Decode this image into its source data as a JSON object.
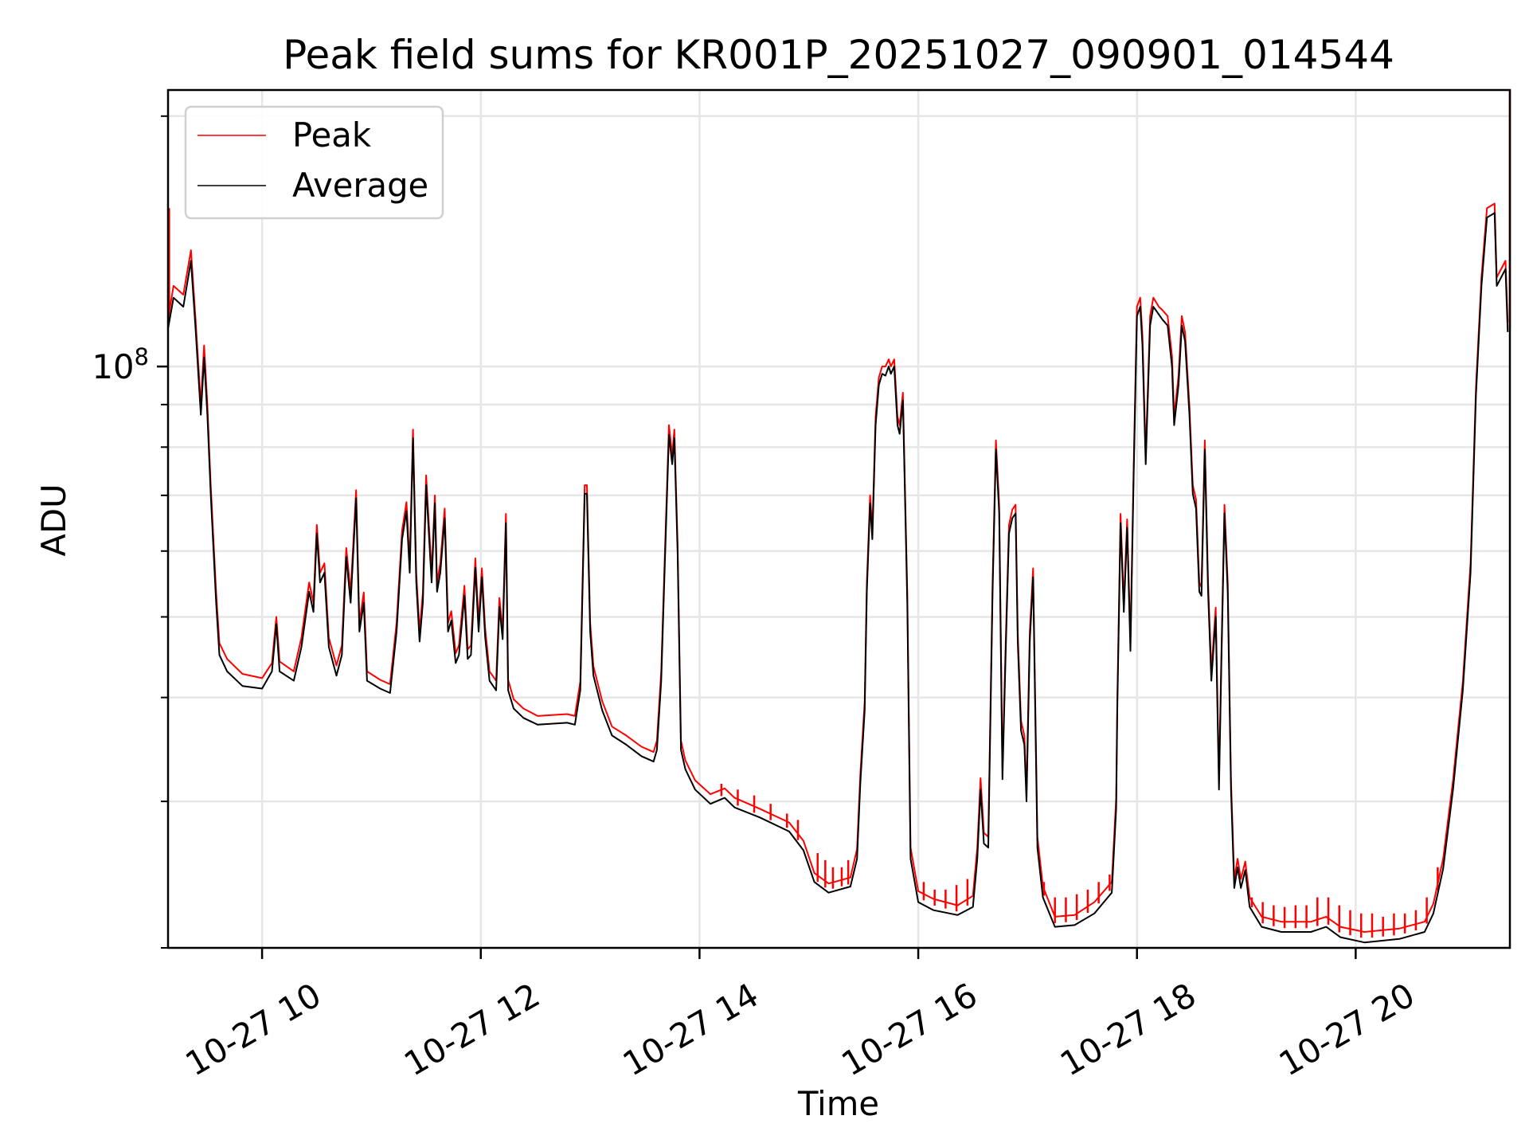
{
  "chart_data": {
    "type": "line",
    "title": "Peak field sums for KR001P_20251027_090901_014544",
    "xlabel": "Time",
    "ylabel": "ADU",
    "yscale": "log",
    "ylim": [
      20000000.0,
      215000000.0
    ],
    "xlim_hours": [
      9.14,
      21.41
    ],
    "x_ticks": [
      {
        "hour": 10,
        "label": "10-27 10"
      },
      {
        "hour": 12,
        "label": "10-27 12"
      },
      {
        "hour": 14,
        "label": "10-27 14"
      },
      {
        "hour": 16,
        "label": "10-27 16"
      },
      {
        "hour": 18,
        "label": "10-27 18"
      },
      {
        "hour": 20,
        "label": "10-27 20"
      }
    ],
    "y_major_ticks": [
      {
        "value": 100000000.0,
        "base": "10",
        "exp": "8"
      }
    ],
    "y_minor_ticks": [
      20000000.0,
      30000000.0,
      40000000.0,
      50000000.0,
      60000000.0,
      70000000.0,
      80000000.0,
      90000000.0,
      200000000.0
    ],
    "grid": true,
    "legend": {
      "placement": "upper-left",
      "entries": [
        {
          "name": "Peak",
          "color": "#ff0000"
        },
        {
          "name": "Average",
          "color": "#000000"
        }
      ]
    },
    "x_hours": [
      9.14,
      9.19,
      9.28,
      9.35,
      9.39,
      9.44,
      9.47,
      9.5,
      9.53,
      9.58,
      9.61,
      9.68,
      9.82,
      10.0,
      10.09,
      10.13,
      10.16,
      10.29,
      10.36,
      10.43,
      10.47,
      10.5,
      10.53,
      10.57,
      10.61,
      10.68,
      10.73,
      10.77,
      10.81,
      10.86,
      10.89,
      10.93,
      10.96,
      11.08,
      11.17,
      11.23,
      11.28,
      11.32,
      11.35,
      11.38,
      11.41,
      11.44,
      11.47,
      11.5,
      11.55,
      11.58,
      11.6,
      11.63,
      11.67,
      11.7,
      11.73,
      11.77,
      11.8,
      11.85,
      11.88,
      11.91,
      11.95,
      11.98,
      12.01,
      12.04,
      12.08,
      12.14,
      12.17,
      12.2,
      12.23,
      12.25,
      12.3,
      12.39,
      12.52,
      12.79,
      12.86,
      12.91,
      12.95,
      12.97,
      13.0,
      13.03,
      13.11,
      13.2,
      13.33,
      13.47,
      13.58,
      13.61,
      13.65,
      13.68,
      13.72,
      13.75,
      13.77,
      13.8,
      13.83,
      13.87,
      13.96,
      14.1,
      14.23,
      14.32,
      14.55,
      14.82,
      14.95,
      15.05,
      15.18,
      15.38,
      15.44,
      15.47,
      15.51,
      15.53,
      15.56,
      15.58,
      15.61,
      15.64,
      15.67,
      15.7,
      15.73,
      15.75,
      15.78,
      15.81,
      15.83,
      15.86,
      15.9,
      15.93,
      16.0,
      16.14,
      16.36,
      16.5,
      16.54,
      16.57,
      16.6,
      16.64,
      16.68,
      16.71,
      16.74,
      16.77,
      16.8,
      16.83,
      16.86,
      16.89,
      16.91,
      16.94,
      16.97,
      16.99,
      17.02,
      17.05,
      17.09,
      17.14,
      17.25,
      17.43,
      17.61,
      17.77,
      17.81,
      17.82,
      17.85,
      17.88,
      17.91,
      17.94,
      17.97,
      18.0,
      18.03,
      18.05,
      18.08,
      18.12,
      18.15,
      18.2,
      18.23,
      18.28,
      18.32,
      18.34,
      18.38,
      18.41,
      18.44,
      18.48,
      18.51,
      18.54,
      18.57,
      18.59,
      18.62,
      18.65,
      18.68,
      18.72,
      18.75,
      18.77,
      18.8,
      18.83,
      18.86,
      18.89,
      18.92,
      18.95,
      18.99,
      19.03,
      19.14,
      19.32,
      19.59,
      19.73,
      19.86,
      20.08,
      20.4,
      20.63,
      20.71,
      20.8,
      20.89,
      20.98,
      21.05,
      21.1,
      21.15,
      21.2,
      21.27,
      21.29,
      21.37,
      21.39
    ],
    "series": [
      {
        "name": "Peak",
        "color": "#ff0000",
        "values": [
          114000000.0,
          125000000.0,
          122000000.0,
          138000000.0,
          115000000.0,
          90000000.0,
          106000000.0,
          90000000.0,
          72000000.0,
          53500000.0,
          46500000.0,
          44500000.0,
          42700000.0,
          42200000.0,
          44000000.0,
          50000000.0,
          44200000.0,
          43000000.0,
          47200000.0,
          55000000.0,
          52000000.0,
          64500000.0,
          56500000.0,
          58000000.0,
          47200000.0,
          43700000.0,
          46200000.0,
          60500000.0,
          53500000.0,
          71000000.0,
          49200000.0,
          53500000.0,
          43000000.0,
          42000000.0,
          41500000.0,
          49200000.0,
          63500000.0,
          68700000.0,
          58000000.0,
          84000000.0,
          56500000.0,
          48000000.0,
          53500000.0,
          74000000.0,
          56500000.0,
          70000000.0,
          55000000.0,
          58000000.0,
          67500000.0,
          49200000.0,
          50800000.0,
          45200000.0,
          46200000.0,
          54500000.0,
          45700000.0,
          46200000.0,
          58800000.0,
          49200000.0,
          57200000.0,
          48500000.0,
          43000000.0,
          41900000.0,
          52700000.0,
          48200000.0,
          66500000.0,
          42000000.0,
          39800000.0,
          38800000.0,
          38000000.0,
          38200000.0,
          38000000.0,
          41800000.0,
          72000000.0,
          72000000.0,
          49200000.0,
          43600000.0,
          39600000.0,
          36900000.0,
          36000000.0,
          34900000.0,
          34400000.0,
          35500000.0,
          43000000.0,
          58000000.0,
          85000000.0,
          78200000.0,
          84000000.0,
          61200000.0,
          35500000.0,
          33600000.0,
          31800000.0,
          30600000.0,
          31100000.0,
          30300000.0,
          29400000.0,
          28300000.0,
          26900000.0,
          24600000.0,
          23900000.0,
          24300000.0,
          26300000.0,
          32300000.0,
          39600000.0,
          55000000.0,
          70000000.0,
          63500000.0,
          87000000.0,
          97000000.0,
          100000000.0,
          100000000.0,
          102000000.0,
          100000000.0,
          102000000.0,
          87000000.0,
          85000000.0,
          93000000.0,
          53500000.0,
          26400000.0,
          23400000.0,
          22900000.0,
          22500000.0,
          23100000.0,
          26400000.0,
          32000000.0,
          27500000.0,
          27200000.0,
          55000000.0,
          81500000.0,
          68200000.0,
          32800000.0,
          46700000.0,
          64500000.0,
          67300000.0,
          68200000.0,
          48000000.0,
          37500000.0,
          36000000.0,
          30800000.0,
          48000000.0,
          57200000.0,
          27200000.0,
          23700000.0,
          21800000.0,
          21900000.0,
          22700000.0,
          24000000.0,
          30300000.0,
          39600000.0,
          66500000.0,
          52000000.0,
          65500000.0,
          46700000.0,
          76000000.0,
          118000000.0,
          121000000.0,
          109000000.0,
          78200000.0,
          115000000.0,
          121000000.0,
          118000000.0,
          117000000.0,
          115000000.0,
          103000000.0,
          87000000.0,
          97500000.0,
          115000000.0,
          110000000.0,
          89700000.0,
          72000000.0,
          69200000.0,
          55000000.0,
          54300000.0,
          81500000.0,
          55000000.0,
          43000000.0,
          51300000.0,
          31800000.0,
          44100000.0,
          68200000.0,
          55000000.0,
          31800000.0,
          24200000.0,
          25600000.0,
          24200000.0,
          25400000.0,
          23000000.0,
          21800000.0,
          21500000.0,
          21500000.0,
          21800000.0,
          21200000.0,
          20900000.0,
          21100000.0,
          21500000.0,
          22600000.0,
          25600000.0,
          31800000.0,
          41800000.0,
          58000000.0,
          94500000.0,
          128000000.0,
          155000000.0,
          157000000.0,
          128000000.0,
          134000000.0,
          113000000.0
        ],
        "spikes": [
          [
            9.15,
            155000000.0
          ],
          [
            14.2,
            31500000.0
          ],
          [
            14.35,
            31000000.0
          ],
          [
            14.5,
            30500000.0
          ],
          [
            14.65,
            29800000.0
          ],
          [
            14.8,
            29000000.0
          ],
          [
            14.9,
            28500000.0
          ],
          [
            15.08,
            26000000.0
          ],
          [
            15.15,
            25500000.0
          ],
          [
            15.22,
            25000000.0
          ],
          [
            15.3,
            25000000.0
          ],
          [
            15.36,
            25500000.0
          ],
          [
            16.05,
            24000000.0
          ],
          [
            16.15,
            23500000.0
          ],
          [
            16.25,
            23500000.0
          ],
          [
            16.35,
            23800000.0
          ],
          [
            16.45,
            24200000.0
          ],
          [
            17.15,
            24000000.0
          ],
          [
            17.25,
            23000000.0
          ],
          [
            17.35,
            23000000.0
          ],
          [
            17.45,
            23200000.0
          ],
          [
            17.55,
            23500000.0
          ],
          [
            17.65,
            24000000.0
          ],
          [
            17.75,
            24500000.0
          ],
          [
            19.05,
            23000000.0
          ],
          [
            19.15,
            22700000.0
          ],
          [
            19.25,
            22500000.0
          ],
          [
            19.35,
            22400000.0
          ],
          [
            19.45,
            22500000.0
          ],
          [
            19.55,
            22500000.0
          ],
          [
            19.65,
            23000000.0
          ],
          [
            19.75,
            23000000.0
          ],
          [
            19.85,
            22500000.0
          ],
          [
            19.95,
            22200000.0
          ],
          [
            20.05,
            22000000.0
          ],
          [
            20.15,
            22000000.0
          ],
          [
            20.25,
            21800000.0
          ],
          [
            20.35,
            22000000.0
          ],
          [
            20.45,
            22000000.0
          ],
          [
            20.55,
            22200000.0
          ],
          [
            20.65,
            23000000.0
          ],
          [
            20.75,
            25000000.0
          ],
          [
            21.41,
            215000000.0
          ]
        ]
      },
      {
        "name": "Average",
        "color": "#000000",
        "values": [
          111000000.0,
          121000000.0,
          118000000.0,
          134000000.0,
          112000000.0,
          87500000.0,
          102500000.0,
          87500000.0,
          70300000.0,
          52000000.0,
          45000000.0,
          43000000.0,
          41300000.0,
          41000000.0,
          43000000.0,
          49000000.0,
          43000000.0,
          41900000.0,
          46000000.0,
          53600000.0,
          50700000.0,
          63000000.0,
          55000000.0,
          56500000.0,
          46000000.0,
          42500000.0,
          45000000.0,
          59000000.0,
          52000000.0,
          69400000.0,
          48000000.0,
          52000000.0,
          41900000.0,
          41000000.0,
          40500000.0,
          48000000.0,
          62000000.0,
          67000000.0,
          56500000.0,
          82000000.0,
          55000000.0,
          46700000.0,
          52000000.0,
          72000000.0,
          55000000.0,
          68500000.0,
          53600000.0,
          56500000.0,
          65700000.0,
          48000000.0,
          49500000.0,
          44000000.0,
          45000000.0,
          53000000.0,
          44500000.0,
          45000000.0,
          57300000.0,
          48000000.0,
          55800000.0,
          47300000.0,
          41900000.0,
          40800000.0,
          51400000.0,
          47000000.0,
          64800000.0,
          40800000.0,
          38800000.0,
          37800000.0,
          37100000.0,
          37300000.0,
          37100000.0,
          40800000.0,
          70300000.0,
          70300000.0,
          48000000.0,
          42500000.0,
          38600000.0,
          36000000.0,
          35100000.0,
          34000000.0,
          33500000.0,
          34600000.0,
          41900000.0,
          56500000.0,
          82800000.0,
          76300000.0,
          82000000.0,
          59700000.0,
          34600000.0,
          32800000.0,
          31000000.0,
          29800000.0,
          30300000.0,
          29500000.0,
          28700000.0,
          27600000.0,
          26200000.0,
          24000000.0,
          23300000.0,
          23700000.0,
          25600000.0,
          31500000.0,
          38600000.0,
          53600000.0,
          68500000.0,
          62000000.0,
          85000000.0,
          95000000.0,
          98000000.0,
          97500000.0,
          100000000.0,
          98000000.0,
          100000000.0,
          85000000.0,
          83000000.0,
          91000000.0,
          52000000.0,
          25600000.0,
          22700000.0,
          22200000.0,
          21900000.0,
          22400000.0,
          25600000.0,
          31000000.0,
          26700000.0,
          26400000.0,
          53600000.0,
          79500000.0,
          66600000.0,
          31900000.0,
          45500000.0,
          63000000.0,
          65700000.0,
          66600000.0,
          46700000.0,
          36500000.0,
          35100000.0,
          30000000.0,
          46700000.0,
          55800000.0,
          26400000.0,
          23000000.0,
          21200000.0,
          21300000.0,
          22000000.0,
          23300000.0,
          29400000.0,
          38600000.0,
          64800000.0,
          50700000.0,
          64000000.0,
          45500000.0,
          74300000.0,
          115000000.0,
          118000000.0,
          106000000.0,
          76300000.0,
          112000000.0,
          118000000.0,
          115500000.0,
          114000000.0,
          112000000.0,
          100000000.0,
          85000000.0,
          95000000.0,
          112000000.0,
          107300000.0,
          87500000.0,
          70300000.0,
          67500000.0,
          53600000.0,
          53000000.0,
          79500000.0,
          53600000.0,
          41900000.0,
          50000000.0,
          31000000.0,
          43000000.0,
          66600000.0,
          53600000.0,
          31000000.0,
          23600000.0,
          25000000.0,
          23600000.0,
          24800000.0,
          22400000.0,
          21200000.0,
          20900000.0,
          20900000.0,
          21200000.0,
          20600000.0,
          20300000.0,
          20500000.0,
          20900000.0,
          22000000.0,
          24900000.0,
          31000000.0,
          40800000.0,
          56500000.0,
          92400000.0,
          125000000.0,
          151000000.0,
          153000000.0,
          125000000.0,
          131000000.0,
          110000000.0
        ]
      }
    ]
  }
}
